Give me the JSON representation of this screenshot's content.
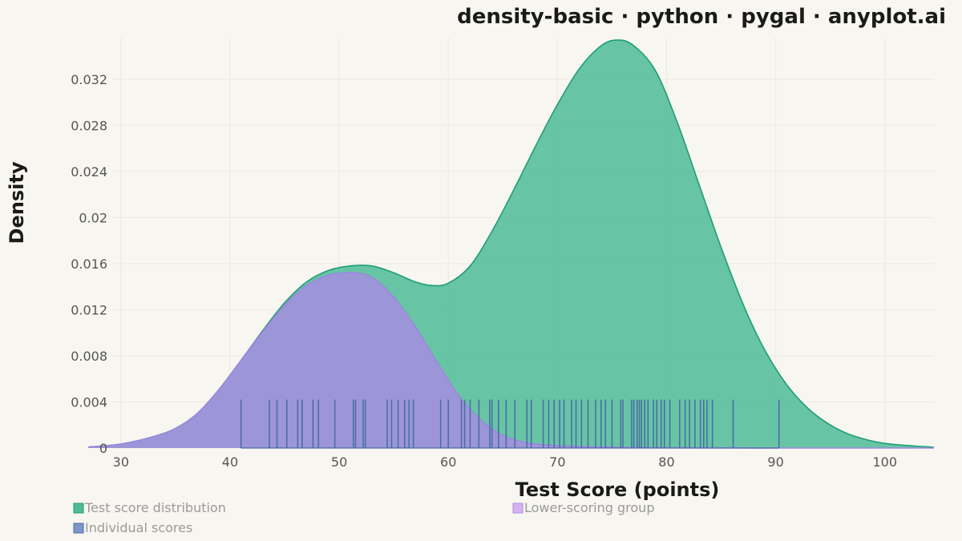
{
  "chart_data": {
    "type": "area",
    "title": "density-basic · python · pygal · anyplot.ai",
    "xlabel": "Test Score (points)",
    "ylabel": "Density",
    "xlim": [
      27,
      104.5
    ],
    "ylim": [
      0,
      0.0356
    ],
    "x_ticks": [
      30,
      40,
      50,
      60,
      70,
      80,
      90,
      100
    ],
    "y_ticks": [
      0,
      0.004,
      0.008,
      0.012,
      0.016,
      0.02,
      0.024,
      0.028,
      0.032
    ],
    "y_tick_labels": [
      "0",
      "0.004",
      "0.008",
      "0.012",
      "0.016",
      "0.02",
      "0.024",
      "0.028",
      "0.032"
    ],
    "grid": true,
    "legend_position": "bottom",
    "series": [
      {
        "name": "Test score distribution",
        "color": "#4dbb98",
        "stroke": "#1f9e77",
        "x": [
          27,
          30,
          33,
          35,
          37,
          39,
          41,
          43,
          45,
          47,
          49,
          51,
          53,
          55,
          57,
          58.5,
          60,
          62,
          64,
          66,
          68,
          70,
          72,
          74,
          75.5,
          77,
          79,
          81,
          83,
          85,
          87,
          89,
          91,
          93,
          95,
          97,
          100,
          104.5
        ],
        "y": [
          8e-05,
          0.00035,
          0.001,
          0.0017,
          0.003,
          0.0051,
          0.0076,
          0.0102,
          0.0126,
          0.0144,
          0.0154,
          0.0158,
          0.0158,
          0.0152,
          0.0144,
          0.0141,
          0.0143,
          0.0158,
          0.0188,
          0.0224,
          0.0262,
          0.0298,
          0.0329,
          0.0349,
          0.0354,
          0.0349,
          0.0327,
          0.0282,
          0.0228,
          0.0174,
          0.0125,
          0.0085,
          0.0055,
          0.0034,
          0.002,
          0.0011,
          0.0004,
          6e-05
        ]
      },
      {
        "name": "Lower-scoring group",
        "color": "#a48fdf",
        "stroke": "#9d86e0",
        "x": [
          27,
          30,
          33,
          35,
          37,
          39,
          41,
          43,
          45,
          47,
          49,
          50.5,
          51.5,
          53,
          55,
          57,
          59,
          61,
          63,
          65,
          67,
          70,
          75,
          80,
          90,
          104.5
        ],
        "y": [
          8e-05,
          0.00035,
          0.001,
          0.0017,
          0.003,
          0.0051,
          0.0076,
          0.0101,
          0.0124,
          0.0141,
          0.015,
          0.0152,
          0.0152,
          0.0148,
          0.0131,
          0.0105,
          0.0074,
          0.0045,
          0.0024,
          0.0011,
          0.0005,
          0.0002,
          6e-05,
          2e-05,
          0.0,
          0.0
        ]
      },
      {
        "name": "Individual scores",
        "color": "#5f7fb8",
        "stroke": "#4a6aa5",
        "rug_height": 0.0042,
        "x": [
          41.0,
          43.6,
          44.3,
          45.2,
          46.2,
          46.6,
          47.6,
          48.1,
          49.6,
          51.3,
          51.5,
          52.2,
          52.4,
          54.4,
          54.8,
          55.4,
          56.0,
          56.4,
          56.8,
          59.3,
          60.0,
          61.2,
          61.5,
          62.0,
          62.8,
          63.8,
          64.0,
          64.6,
          65.3,
          66.1,
          67.2,
          67.6,
          68.7,
          69.2,
          69.7,
          70.2,
          70.6,
          71.3,
          71.7,
          72.2,
          72.8,
          73.5,
          74.0,
          74.4,
          75.0,
          75.8,
          76.0,
          76.8,
          77.0,
          77.3,
          77.5,
          77.7,
          78.0,
          78.3,
          78.8,
          79.1,
          79.5,
          79.8,
          80.3,
          81.2,
          81.7,
          82.1,
          82.6,
          83.1,
          83.4,
          83.7,
          84.2,
          86.1,
          90.3
        ]
      }
    ]
  }
}
